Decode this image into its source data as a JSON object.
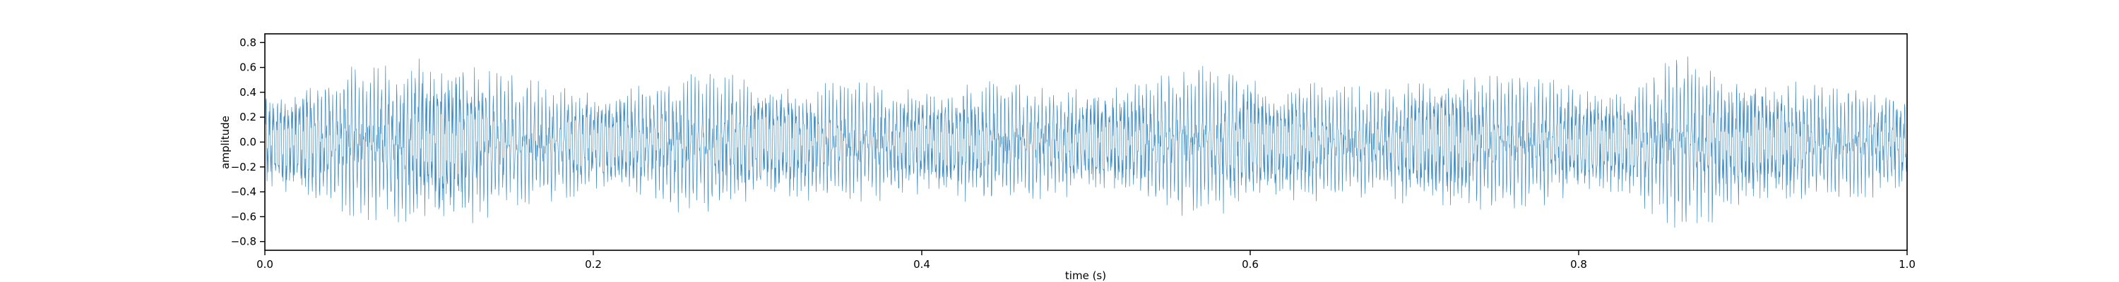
{
  "chart_data": {
    "type": "line",
    "title": "",
    "xlabel": "time (s)",
    "ylabel": "amplitude",
    "xlim": [
      0.0,
      1.0
    ],
    "ylim": [
      -0.87,
      0.87
    ],
    "grid": false,
    "legend": "none",
    "xticks": [
      0.0,
      0.2,
      0.4,
      0.6,
      0.8,
      1.0
    ],
    "xtick_labels": [
      "0.0",
      "0.2",
      "0.4",
      "0.6",
      "0.8",
      "1.0"
    ],
    "yticks": [
      0.8,
      0.6,
      0.4,
      0.2,
      0.0,
      -0.2,
      -0.4,
      -0.6,
      -0.8
    ],
    "ytick_labels": [
      "0.8",
      "0.6",
      "0.4",
      "0.2",
      "0.0",
      "−0.2",
      "−0.4",
      "−0.6",
      "−0.8"
    ],
    "series": [
      {
        "color": "#1f77b4",
        "description_of_envelope": "",
        "envelope": {
          "t": [
            0.0,
            0.02,
            0.05,
            0.08,
            0.1,
            0.11,
            0.13,
            0.16,
            0.2,
            0.23,
            0.25,
            0.27,
            0.3,
            0.33,
            0.36,
            0.4,
            0.43,
            0.46,
            0.5,
            0.53,
            0.56,
            0.58,
            0.6,
            0.63,
            0.66,
            0.69,
            0.71,
            0.74,
            0.77,
            0.8,
            0.83,
            0.86,
            0.88,
            0.91,
            0.94,
            0.97,
            1.0
          ],
          "peak": [
            0.46,
            0.5,
            0.6,
            0.66,
            0.72,
            0.76,
            0.66,
            0.5,
            0.44,
            0.48,
            0.58,
            0.56,
            0.52,
            0.47,
            0.48,
            0.46,
            0.5,
            0.47,
            0.44,
            0.5,
            0.6,
            0.62,
            0.56,
            0.5,
            0.44,
            0.48,
            0.58,
            0.56,
            0.52,
            0.48,
            0.46,
            0.7,
            0.66,
            0.54,
            0.48,
            0.44,
            0.46
          ]
        }
      }
    ]
  }
}
